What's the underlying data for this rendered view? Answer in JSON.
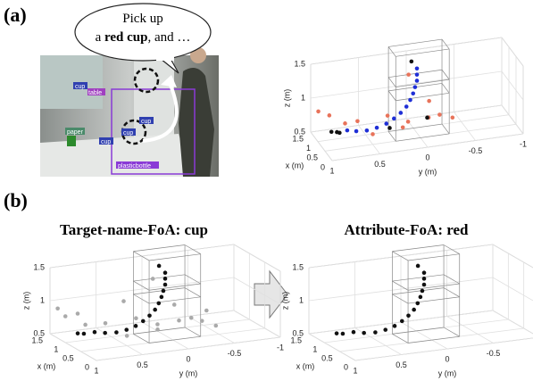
{
  "panel_a": "(a)",
  "panel_b": "(b)",
  "bubble": {
    "line1": "Pick up",
    "pre": "a ",
    "bold": "red cup",
    "post": ", and …"
  },
  "photo": {
    "labels": [
      "cup",
      "table",
      "cup",
      "cup",
      "cup",
      "paper",
      "plasticbottle"
    ]
  },
  "titles": [
    "Target-name-FoA: cup",
    "Attribute-FoA: red"
  ],
  "plots": [
    {
      "xlabel": "x (m)",
      "ylabel": "y (m)",
      "zlabel": "z (m)",
      "xlim": [
        0,
        1.5
      ],
      "ylim": [
        1,
        -1
      ],
      "zlim": [
        0.5,
        1.5
      ],
      "xticks": [
        1.5,
        1,
        0.5,
        0
      ],
      "yticks": [
        1,
        0.5,
        0,
        -0.5,
        -1
      ],
      "zticks": [
        0.5,
        1,
        1.5
      ],
      "series": [
        {
          "color": "#e8735a",
          "points": [
            [
              1.3,
              0.95,
              0.85
            ],
            [
              1.2,
              0.85,
              0.8
            ],
            [
              0.9,
              0.6,
              0.75
            ],
            [
              0.8,
              0.3,
              0.8
            ],
            [
              0.7,
              0.1,
              0.7
            ],
            [
              0.6,
              -0.1,
              0.75
            ],
            [
              0.5,
              -0.2,
              0.8
            ],
            [
              0.9,
              -0.15,
              0.9
            ],
            [
              0.6,
              -0.35,
              0.7
            ],
            [
              0.4,
              0.2,
              0.72
            ],
            [
              1.0,
              0.05,
              1.3
            ],
            [
              1.1,
              0.7,
              0.68
            ],
            [
              0.5,
              0.5,
              0.65
            ]
          ]
        },
        {
          "color": "#1f2fd6",
          "points": [
            [
              0.75,
              0.0,
              1.45
            ],
            [
              0.75,
              0.0,
              1.36
            ],
            [
              0.75,
              0.0,
              1.27
            ],
            [
              0.75,
              0.02,
              1.18
            ],
            [
              0.75,
              0.04,
              1.09
            ],
            [
              0.75,
              0.07,
              1.0
            ],
            [
              0.75,
              0.11,
              0.91
            ],
            [
              0.75,
              0.17,
              0.83
            ],
            [
              0.75,
              0.24,
              0.76
            ],
            [
              0.75,
              0.32,
              0.7
            ],
            [
              0.75,
              0.42,
              0.66
            ],
            [
              0.78,
              0.52,
              0.63
            ],
            [
              0.85,
              0.62,
              0.62
            ],
            [
              0.95,
              0.7,
              0.62
            ]
          ]
        },
        {
          "color": "#111111",
          "points": [
            [
              1.05,
              0.85,
              0.6
            ],
            [
              1.0,
              0.8,
              0.6
            ],
            [
              0.95,
              0.78,
              0.6
            ],
            [
              0.8,
              0.05,
              1.55
            ],
            [
              0.65,
              0.3,
              0.66
            ],
            [
              0.7,
              -0.1,
              0.72
            ]
          ]
        }
      ]
    },
    {
      "xlabel": "x (m)",
      "ylabel": "y (m)",
      "zlabel": "z (m)",
      "xlim": [
        0,
        1.5
      ],
      "ylim": [
        1,
        -1
      ],
      "zlim": [
        0.5,
        1.5
      ],
      "xticks": [
        1.5,
        1,
        0.5,
        0
      ],
      "yticks": [
        1,
        0.5,
        0,
        -0.5,
        -1
      ],
      "zticks": [
        0.5,
        1,
        1.5
      ],
      "series": [
        {
          "color": "#aaaaaa",
          "points": [
            [
              1.4,
              0.95,
              0.9
            ],
            [
              1.3,
              0.9,
              0.8
            ],
            [
              1.2,
              0.8,
              0.85
            ],
            [
              1.1,
              0.75,
              0.7
            ],
            [
              0.9,
              0.6,
              0.75
            ],
            [
              0.8,
              0.3,
              0.8
            ],
            [
              0.7,
              0.1,
              0.7
            ],
            [
              0.6,
              -0.1,
              0.75
            ],
            [
              0.5,
              -0.2,
              0.8
            ],
            [
              0.9,
              -0.15,
              0.9
            ],
            [
              0.6,
              -0.35,
              0.7
            ],
            [
              0.4,
              0.2,
              0.72
            ],
            [
              1.0,
              0.05,
              1.3
            ],
            [
              0.5,
              0.5,
              0.65
            ],
            [
              0.3,
              -0.4,
              0.7
            ],
            [
              1.2,
              0.3,
              0.95
            ],
            [
              0.9,
              -0.5,
              0.75
            ]
          ]
        },
        {
          "color": "#111111",
          "points": [
            [
              0.75,
              0.0,
              1.45
            ],
            [
              0.75,
              0.0,
              1.36
            ],
            [
              0.75,
              0.0,
              1.27
            ],
            [
              0.75,
              0.02,
              1.18
            ],
            [
              0.75,
              0.04,
              1.09
            ],
            [
              0.75,
              0.07,
              1.0
            ],
            [
              0.75,
              0.11,
              0.91
            ],
            [
              0.75,
              0.17,
              0.83
            ],
            [
              0.75,
              0.24,
              0.76
            ],
            [
              0.75,
              0.32,
              0.7
            ],
            [
              0.75,
              0.42,
              0.66
            ],
            [
              0.78,
              0.52,
              0.63
            ],
            [
              0.85,
              0.62,
              0.62
            ],
            [
              0.95,
              0.7,
              0.62
            ],
            [
              1.05,
              0.85,
              0.6
            ],
            [
              1.0,
              0.8,
              0.6
            ],
            [
              0.8,
              0.05,
              1.55
            ]
          ]
        }
      ]
    },
    {
      "xlabel": "x (m)",
      "ylabel": "y (m)",
      "zlabel": "z (m)",
      "xlim": [
        0,
        1.5
      ],
      "ylim": [
        1,
        -1
      ],
      "zlim": [
        0.5,
        1.5
      ],
      "xticks": [
        1.5,
        1,
        0.5,
        0
      ],
      "yticks": [
        1,
        0.5,
        0,
        -0.5,
        -1
      ],
      "zticks": [
        0.5,
        1,
        1.5
      ],
      "series": [
        {
          "color": "#111111",
          "points": [
            [
              0.75,
              0.0,
              1.45
            ],
            [
              0.75,
              0.0,
              1.36
            ],
            [
              0.75,
              0.0,
              1.27
            ],
            [
              0.75,
              0.02,
              1.18
            ],
            [
              0.75,
              0.04,
              1.09
            ],
            [
              0.75,
              0.07,
              1.0
            ],
            [
              0.75,
              0.11,
              0.91
            ],
            [
              0.75,
              0.17,
              0.83
            ],
            [
              0.75,
              0.24,
              0.76
            ],
            [
              0.75,
              0.32,
              0.7
            ],
            [
              0.75,
              0.42,
              0.66
            ],
            [
              0.78,
              0.52,
              0.63
            ],
            [
              0.85,
              0.62,
              0.62
            ],
            [
              0.95,
              0.7,
              0.62
            ],
            [
              1.05,
              0.85,
              0.6
            ],
            [
              1.0,
              0.8,
              0.6
            ],
            [
              0.8,
              0.05,
              1.55
            ]
          ]
        }
      ]
    }
  ]
}
